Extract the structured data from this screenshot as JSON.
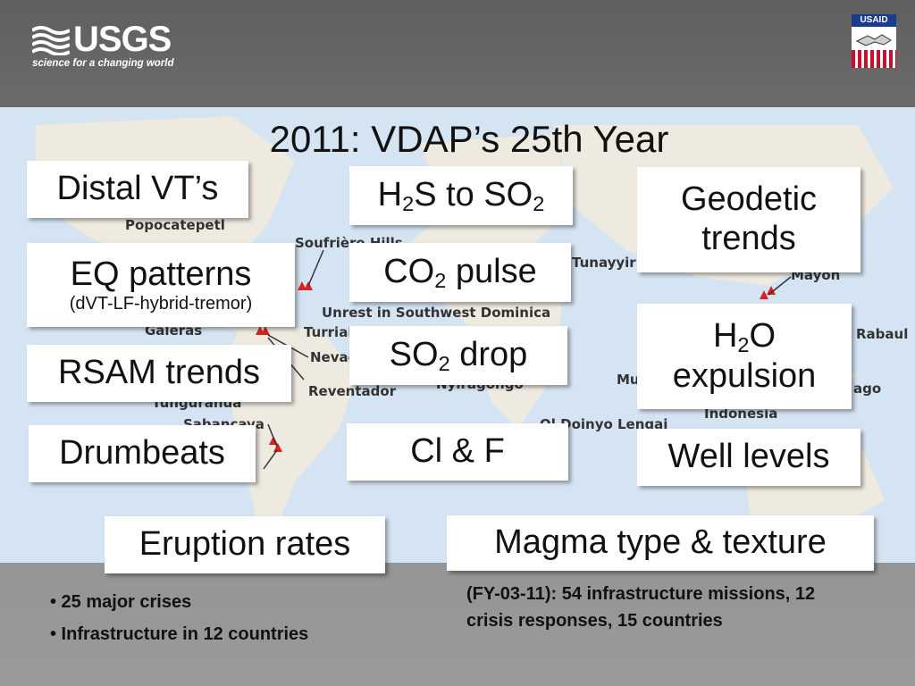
{
  "header": {
    "logo_text": "USGS",
    "logo_tagline": "science for a changing world",
    "partner_label": "USAID"
  },
  "slide": {
    "title": "2011:  VDAP’s 25th Year"
  },
  "map_labels": [
    "Popocatepetl",
    "Soufrière Hills",
    "Unrest in Southwest Dominica",
    "Galeras",
    "Turrialba",
    "Nevado",
    "Reventador",
    "Tungurahua",
    "Sabancaya",
    "Nyiragongo",
    "Ol Doinyo Lengai",
    "Tunayyir",
    "Mayon",
    "Rabaul",
    "Indonesia",
    "Mu",
    "ago"
  ],
  "boxes": {
    "distal_vt": "Distal VT’s",
    "h2s_main": "H",
    "h2s_sub": "2",
    "h2s_rest": "S to SO",
    "h2s_sub2": "2",
    "geodetic": "Geodetic trends",
    "eq_patterns": "EQ patterns",
    "eq_sub": "(dVT-LF-hybrid-tremor)",
    "co2_main": "CO",
    "co2_sub": "2",
    "co2_rest": " pulse",
    "h2o_main": "H",
    "h2o_sub": "2",
    "h2o_rest": "O",
    "h2o_line2": "expulsion",
    "rsam": "RSAM trends",
    "so2_main": "SO",
    "so2_sub": "2",
    "so2_rest": " drop",
    "drumbeats": "Drumbeats",
    "clf": "Cl & F",
    "well_levels": "Well levels",
    "eruption_rates": "Eruption rates",
    "magma": "Magma type & texture"
  },
  "footer": {
    "bullets": [
      "• 25 major crises",
      "• Infrastructure in 12 countries"
    ],
    "note": "(FY-03-11):  54 infrastructure missions, 12 crisis responses, 15 countries"
  },
  "colors": {
    "map_land": "#eeeae0",
    "map_ocean": "#d5e4f2",
    "volcano_marker": "#d8231f",
    "background": "#7a7a7a"
  }
}
